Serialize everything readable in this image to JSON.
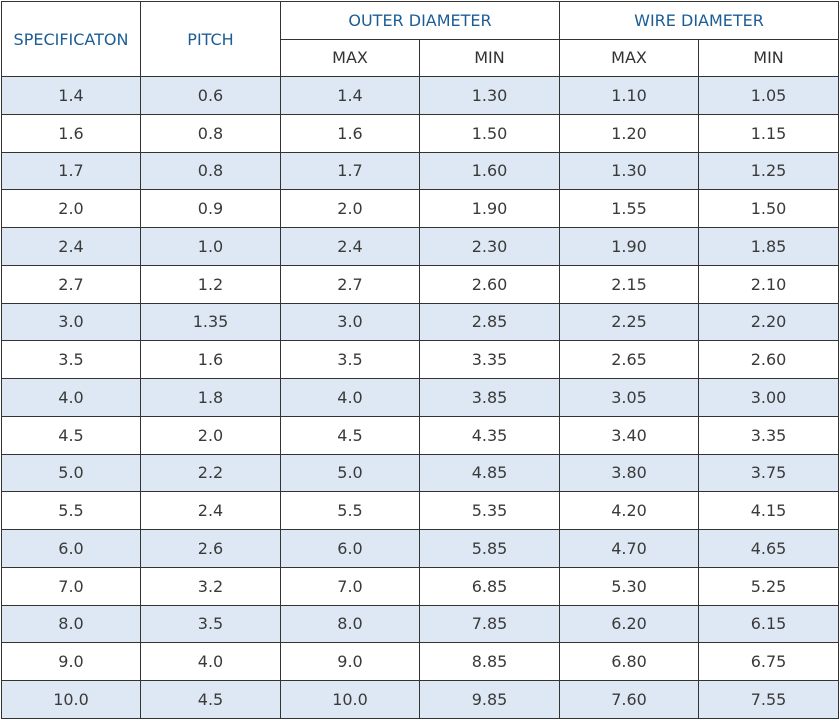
{
  "headers": {
    "specification": "SPECIFICATON",
    "pitch": "PITCH",
    "outer_diameter": "OUTER DIAMETER",
    "wire_diameter": "WIRE DIAMETER",
    "max": "MAX",
    "min": "MIN"
  },
  "colors": {
    "header_text": "#1c5d95",
    "shaded_row": "#dde8f4",
    "border": "#333333"
  },
  "rows": [
    [
      "1.4",
      "0.6",
      "1.4",
      "1.30",
      "1.10",
      "1.05"
    ],
    [
      "1.6",
      "0.8",
      "1.6",
      "1.50",
      "1.20",
      "1.15"
    ],
    [
      "1.7",
      "0.8",
      "1.7",
      "1.60",
      "1.30",
      "1.25"
    ],
    [
      "2.0",
      "0.9",
      "2.0",
      "1.90",
      "1.55",
      "1.50"
    ],
    [
      "2.4",
      "1.0",
      "2.4",
      "2.30",
      "1.90",
      "1.85"
    ],
    [
      "2.7",
      "1.2",
      "2.7",
      "2.60",
      "2.15",
      "2.10"
    ],
    [
      "3.0",
      "1.35",
      "3.0",
      "2.85",
      "2.25",
      "2.20"
    ],
    [
      "3.5",
      "1.6",
      "3.5",
      "3.35",
      "2.65",
      "2.60"
    ],
    [
      "4.0",
      "1.8",
      "4.0",
      "3.85",
      "3.05",
      "3.00"
    ],
    [
      "4.5",
      "2.0",
      "4.5",
      "4.35",
      "3.40",
      "3.35"
    ],
    [
      "5.0",
      "2.2",
      "5.0",
      "4.85",
      "3.80",
      "3.75"
    ],
    [
      "5.5",
      "2.4",
      "5.5",
      "5.35",
      "4.20",
      "4.15"
    ],
    [
      "6.0",
      "2.6",
      "6.0",
      "5.85",
      "4.70",
      "4.65"
    ],
    [
      "7.0",
      "3.2",
      "7.0",
      "6.85",
      "5.30",
      "5.25"
    ],
    [
      "8.0",
      "3.5",
      "8.0",
      "7.85",
      "6.20",
      "6.15"
    ],
    [
      "9.0",
      "4.0",
      "9.0",
      "8.85",
      "6.80",
      "6.75"
    ],
    [
      "10.0",
      "4.5",
      "10.0",
      "9.85",
      "7.60",
      "7.55"
    ]
  ]
}
